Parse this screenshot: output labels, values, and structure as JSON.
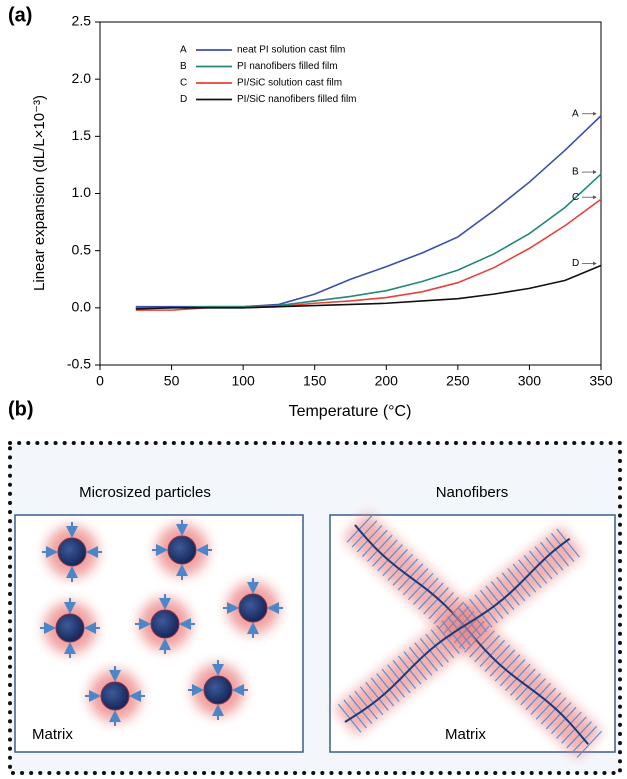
{
  "panel_a_label": "(a)",
  "chart_data": {
    "type": "line",
    "y_label": "Linear expansion (dL/L×10⁻³)",
    "x_label": "Temperature (°C)",
    "x": [
      25,
      50,
      75,
      100,
      125,
      150,
      175,
      200,
      225,
      250,
      275,
      300,
      325,
      350
    ],
    "series": [
      {
        "label": "A",
        "name": "neat PI solution cast film",
        "color": "#3b4fa8",
        "values": [
          0.01,
          0.01,
          0.01,
          0.01,
          0.03,
          0.12,
          0.25,
          0.36,
          0.48,
          0.62,
          0.85,
          1.1,
          1.38,
          1.68
        ]
      },
      {
        "label": "B",
        "name": "PI nanofibers filled film",
        "color": "#23877a",
        "values": [
          0.0,
          0.0,
          0.01,
          0.01,
          0.02,
          0.06,
          0.1,
          0.15,
          0.23,
          0.33,
          0.47,
          0.65,
          0.88,
          1.17
        ]
      },
      {
        "label": "C",
        "name": "PI/SiC solution cast film",
        "color": "#e8413a",
        "values": [
          -0.02,
          -0.02,
          0.0,
          0.0,
          0.01,
          0.04,
          0.06,
          0.09,
          0.14,
          0.22,
          0.35,
          0.52,
          0.72,
          0.95
        ]
      },
      {
        "label": "D",
        "name": "PI/SiC nanofibers filled film",
        "color": "#111111",
        "values": [
          -0.01,
          0.0,
          0.0,
          0.0,
          0.01,
          0.02,
          0.03,
          0.04,
          0.06,
          0.08,
          0.12,
          0.17,
          0.24,
          0.37
        ]
      }
    ],
    "xlim": [
      0,
      350
    ],
    "xticks": [
      0,
      50,
      100,
      150,
      200,
      250,
      300,
      350
    ],
    "ylim": [
      -0.5,
      2.5
    ],
    "yticks": [
      -0.5,
      {
        "value": 0,
        "label": "0.0"
      },
      0.5,
      {
        "value": 1,
        "label": "1.0"
      },
      1.5,
      {
        "value": 2,
        "label": "2.0"
      },
      2.5
    ]
  },
  "panel_b": {
    "label": "(b)",
    "left_title": "Microsized particles",
    "right_title": "Nanofibers",
    "left_matrix": "Matrix",
    "right_matrix": "Matrix"
  }
}
